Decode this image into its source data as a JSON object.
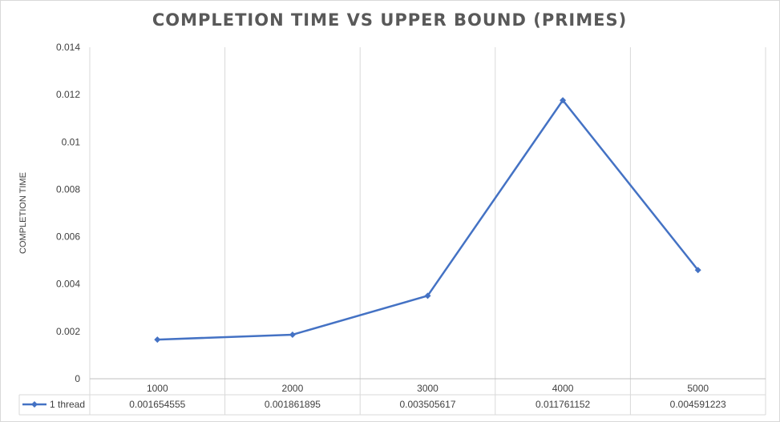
{
  "chart_data": {
    "type": "line",
    "title": "COMPLETION TIME VS UPPER BOUND (PRIMES)",
    "xlabel": "",
    "ylabel": "COMPLETION TIME",
    "categories": [
      "1000",
      "2000",
      "3000",
      "4000",
      "5000"
    ],
    "series": [
      {
        "name": "1 thread",
        "values": [
          0.001654555,
          0.001861895,
          0.003505617,
          0.011761152,
          0.004591223
        ],
        "labels": [
          "0.001654555",
          "0.001861895",
          "0.003505617",
          "0.011761152",
          "0.004591223"
        ],
        "color": "#4472C4"
      }
    ],
    "ylim": [
      0,
      0.014
    ],
    "yticks": [
      "0",
      "0.002",
      "0.004",
      "0.006",
      "0.008",
      "0.01",
      "0.012",
      "0.014"
    ],
    "grid": "vertical-category-lines",
    "legend": "data-table-row",
    "data_table": true
  }
}
